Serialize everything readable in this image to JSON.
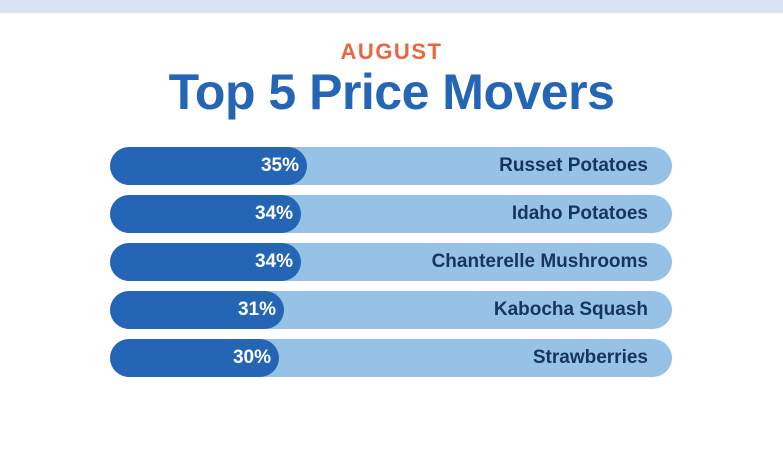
{
  "header": {
    "kicker": "AUGUST",
    "title": "Top 5 Price Movers"
  },
  "colors": {
    "fill": "#2466b5",
    "track": "#96c3e5",
    "kicker": "#e8673c",
    "title": "#2466b5",
    "label": "#17345f",
    "band": "#d6e4f3"
  },
  "chart_data": {
    "type": "bar",
    "orientation": "horizontal",
    "title": "Top 5 Price Movers",
    "subtitle": "AUGUST",
    "categories": [
      "Russet Potatoes",
      "Idaho Potatoes",
      "Chanterelle Mushrooms",
      "Kabocha Squash",
      "Strawberries"
    ],
    "values": [
      35,
      34,
      34,
      31,
      30
    ],
    "value_labels": [
      "35%",
      "34%",
      "34%",
      "31%",
      "30%"
    ],
    "unit": "%",
    "xlim": [
      0,
      100
    ],
    "grid": false,
    "legend": "none"
  }
}
